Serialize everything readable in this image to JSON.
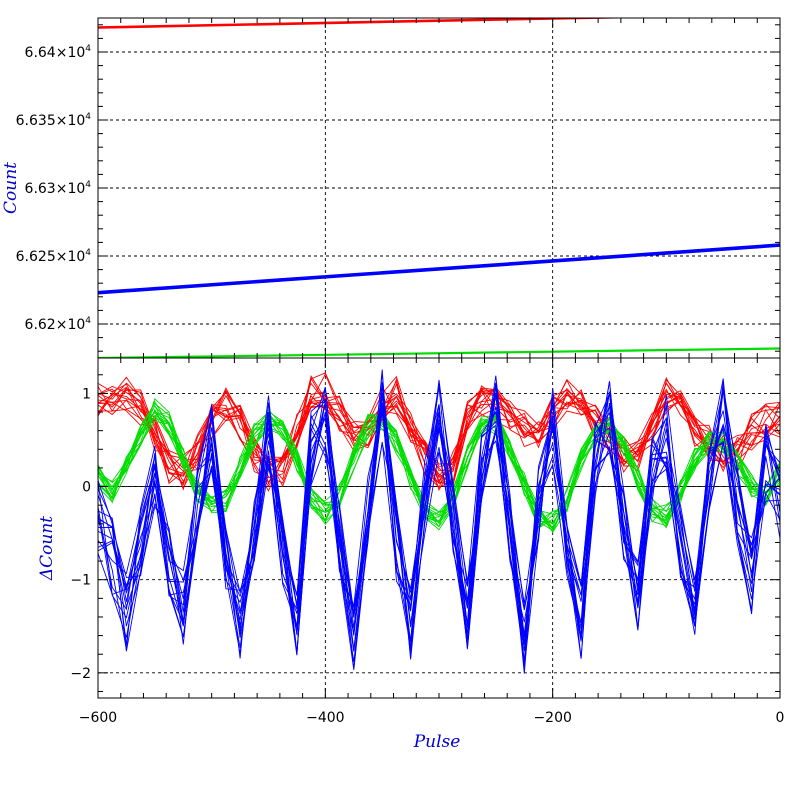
{
  "chart_data": [
    {
      "type": "line",
      "panel": "top",
      "ylabel": "Count",
      "xlim": [
        -600,
        0
      ],
      "ylim": [
        66175,
        66425
      ],
      "yticks": [
        66200,
        66250,
        66300,
        66350,
        66400
      ],
      "ytick_labels": [
        {
          "mantissa": "6.62×10",
          "exp": "4"
        },
        {
          "mantissa": "6.625×10",
          "exp": "4"
        },
        {
          "mantissa": "6.63×10",
          "exp": "4"
        },
        {
          "mantissa": "6.635×10",
          "exp": "4"
        },
        {
          "mantissa": "6.64×10",
          "exp": "4"
        }
      ],
      "xticks": [
        -600,
        -400,
        -200,
        0
      ],
      "grid": true,
      "series": [
        {
          "color": "#ff0000",
          "x": [
            -600,
            0
          ],
          "y": [
            66418,
            66428
          ],
          "width": 2.6
        },
        {
          "color": "#0000ff",
          "x": [
            -600,
            0
          ],
          "y": [
            66223,
            66258
          ],
          "width": 3.6
        },
        {
          "color": "#00dd00",
          "x": [
            -600,
            0
          ],
          "y": [
            66175,
            66182
          ],
          "width": 2.2
        }
      ]
    },
    {
      "type": "line",
      "panel": "bottom",
      "xlabel": "Pulse",
      "ylabel": "ΔCount",
      "xlim": [
        -600,
        0
      ],
      "ylim": [
        -2.27,
        1.38
      ],
      "yticks": [
        -2,
        -1,
        0,
        1
      ],
      "ytick_labels": [
        "−2",
        "−1",
        "0",
        "1"
      ],
      "xticks": [
        -600,
        -400,
        -200,
        0
      ],
      "xtick_labels": [
        "−600",
        "−400",
        "−200",
        "0"
      ],
      "grid": true,
      "zero_line": true,
      "groups": [
        {
          "color": "#ff0000",
          "count": 15,
          "x_step": 12.5,
          "base": [
            0.92,
            0.93,
            0.98,
            0.84,
            0.55,
            0.2,
            0.15,
            0.38,
            0.7,
            0.9,
            0.7,
            0.35,
            0.15,
            0.2,
            0.62,
            1.0,
            1.02,
            0.78,
            0.55,
            0.55,
            0.88,
            0.98,
            0.65,
            0.3,
            0.12,
            0.22,
            0.72,
            0.9,
            0.88,
            0.72,
            0.62,
            0.6,
            0.78,
            0.98,
            0.92,
            0.7,
            0.55,
            0.35,
            0.32,
            0.62,
            0.98,
            0.88,
            0.62,
            0.48,
            0.35,
            0.35,
            0.58,
            0.7,
            0.72
          ],
          "jitter": 0.2
        },
        {
          "color": "#00dd00",
          "count": 15,
          "x_step": 12.5,
          "base": [
            0.12,
            -0.05,
            0.25,
            0.55,
            0.82,
            0.68,
            0.3,
            -0.05,
            -0.2,
            -0.15,
            0.22,
            0.55,
            0.72,
            0.62,
            0.28,
            -0.1,
            -0.28,
            -0.1,
            0.3,
            0.65,
            0.72,
            0.48,
            0.1,
            -0.22,
            -0.35,
            -0.12,
            0.32,
            0.62,
            0.68,
            0.42,
            0.02,
            -0.32,
            -0.38,
            -0.15,
            0.28,
            0.58,
            0.62,
            0.42,
            0.08,
            -0.25,
            -0.32,
            -0.05,
            0.3,
            0.5,
            0.48,
            0.25,
            0.02,
            -0.12,
            0.15
          ],
          "jitter": 0.13
        },
        {
          "color": "#0000ff",
          "count": 16,
          "x_step": 12.5,
          "base": [
            -0.3,
            -0.75,
            -1.35,
            -0.6,
            0.2,
            -0.8,
            -1.3,
            -0.2,
            0.55,
            -0.85,
            -1.5,
            -0.4,
            0.6,
            -0.7,
            -1.4,
            0.4,
            0.7,
            -0.5,
            -1.55,
            -0.3,
            0.85,
            -0.6,
            -1.5,
            -0.1,
            0.75,
            -0.35,
            -1.4,
            0.2,
            0.8,
            -0.5,
            -1.6,
            -0.2,
            0.65,
            -0.6,
            -1.45,
            0.3,
            0.75,
            -0.4,
            -1.2,
            0.2,
            0.6,
            -0.6,
            -1.3,
            0.1,
            0.75,
            -0.2,
            -0.95,
            0.25,
            -0.15
          ],
          "jitter": 0.42
        }
      ]
    }
  ]
}
